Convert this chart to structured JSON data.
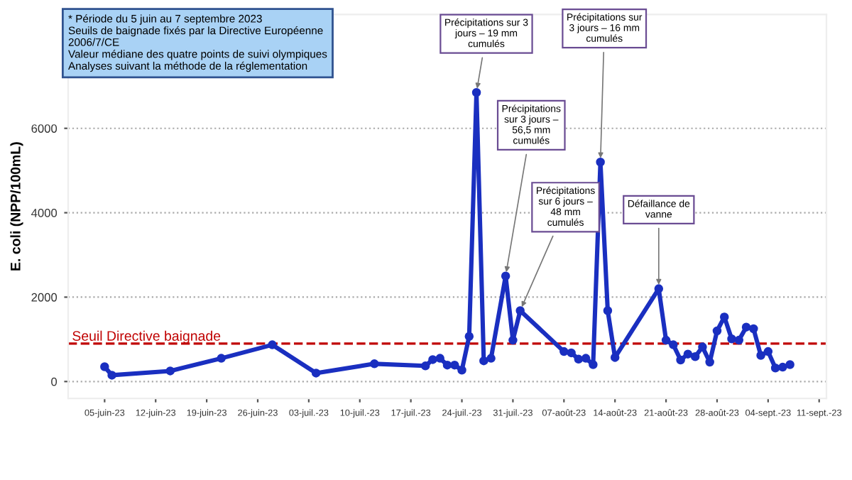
{
  "chart_data": {
    "type": "line",
    "ylabel": "E. coli (NPP/100mL)",
    "x": [
      "2023-06-05",
      "2023-06-06",
      "2023-06-14",
      "2023-06-21",
      "2023-06-28",
      "2023-07-04",
      "2023-07-12",
      "2023-07-19",
      "2023-07-20",
      "2023-07-21",
      "2023-07-22",
      "2023-07-23",
      "2023-07-24",
      "2023-07-25",
      "2023-07-26",
      "2023-07-27",
      "2023-07-28",
      "2023-07-30",
      "2023-07-31",
      "2023-08-01",
      "2023-08-07",
      "2023-08-08",
      "2023-08-09",
      "2023-08-10",
      "2023-08-11",
      "2023-08-12",
      "2023-08-13",
      "2023-08-14",
      "2023-08-20",
      "2023-08-21",
      "2023-08-22",
      "2023-08-23",
      "2023-08-24",
      "2023-08-25",
      "2023-08-26",
      "2023-08-27",
      "2023-08-28",
      "2023-08-29",
      "2023-08-30",
      "2023-08-31",
      "2023-09-01",
      "2023-09-02",
      "2023-09-03",
      "2023-09-04",
      "2023-09-05",
      "2023-09-06",
      "2023-09-07"
    ],
    "series": [
      {
        "color": "#1a2fc0",
        "values": [
          350,
          150,
          250,
          550,
          870,
          200,
          420,
          370,
          520,
          550,
          390,
          390,
          270,
          1070,
          6850,
          490,
          550,
          2500,
          980,
          1680,
          710,
          680,
          530,
          550,
          400,
          5200,
          1680,
          570,
          2200,
          980,
          870,
          510,
          650,
          590,
          820,
          460,
          1200,
          1530,
          1010,
          980,
          1290,
          1250,
          620,
          710,
          320,
          340,
          400
        ]
      }
    ],
    "xlim": [
      "2023-05-31",
      "2023-09-12"
    ],
    "xticks": [
      {
        "value": "2023-06-05",
        "label": "05-juin-23"
      },
      {
        "value": "2023-06-12",
        "label": "12-juin-23"
      },
      {
        "value": "2023-06-19",
        "label": "19-juin-23"
      },
      {
        "value": "2023-06-26",
        "label": "26-juin-23"
      },
      {
        "value": "2023-07-03",
        "label": "03-juil.-23"
      },
      {
        "value": "2023-07-10",
        "label": "10-juil.-23"
      },
      {
        "value": "2023-07-17",
        "label": "17-juil.-23"
      },
      {
        "value": "2023-07-24",
        "label": "24-juil.-23"
      },
      {
        "value": "2023-07-31",
        "label": "31-juil.-23"
      },
      {
        "value": "2023-08-07",
        "label": "07-août-23"
      },
      {
        "value": "2023-08-14",
        "label": "14-août-23"
      },
      {
        "value": "2023-08-21",
        "label": "21-août-23"
      },
      {
        "value": "2023-08-28",
        "label": "28-août-23"
      },
      {
        "value": "2023-09-04",
        "label": "04-sept.-23"
      },
      {
        "value": "2023-09-11",
        "label": "11-sept.-23"
      }
    ],
    "ylim": [
      -400,
      8700
    ],
    "yticks": [
      0,
      2000,
      4000,
      6000
    ],
    "grid": "y",
    "marker": "circle",
    "line_style": "solid",
    "legend": false,
    "ref_lines": [
      {
        "axis": "y",
        "value": 900,
        "label": "Seuil Directive baignade",
        "color": "#c00000",
        "line_style": "dashed"
      }
    ],
    "annotations": [
      "* Période du 5 juin au 7 septembre 2023\nSeuils de baignade fixés par la Directive Européenne\n2006/7/CE\nValeur médiane des quatre points de suivi olympiques\nAnalyses suivant la méthode de la réglementation",
      {
        "text": "Précipitations sur 3\njours – 19 mm\ncumulés",
        "x": "2023-07-26",
        "y": 6850
      },
      {
        "text": "Précipitations\nsur 3 jours –\n56,5 mm\ncumulés",
        "x": "2023-07-30",
        "y": 2500
      },
      {
        "text": "Précipitations\nsur 6 jours –\n48 mm\ncumulés",
        "x": "2023-08-01",
        "y": 1680
      },
      {
        "text": "Précipitations sur\n3 jours – 16 mm\ncumulés",
        "x": "2023-08-12",
        "y": 5200
      },
      {
        "text": "Défaillance de\nvanne",
        "x": "2023-08-20",
        "y": 2200
      }
    ]
  }
}
